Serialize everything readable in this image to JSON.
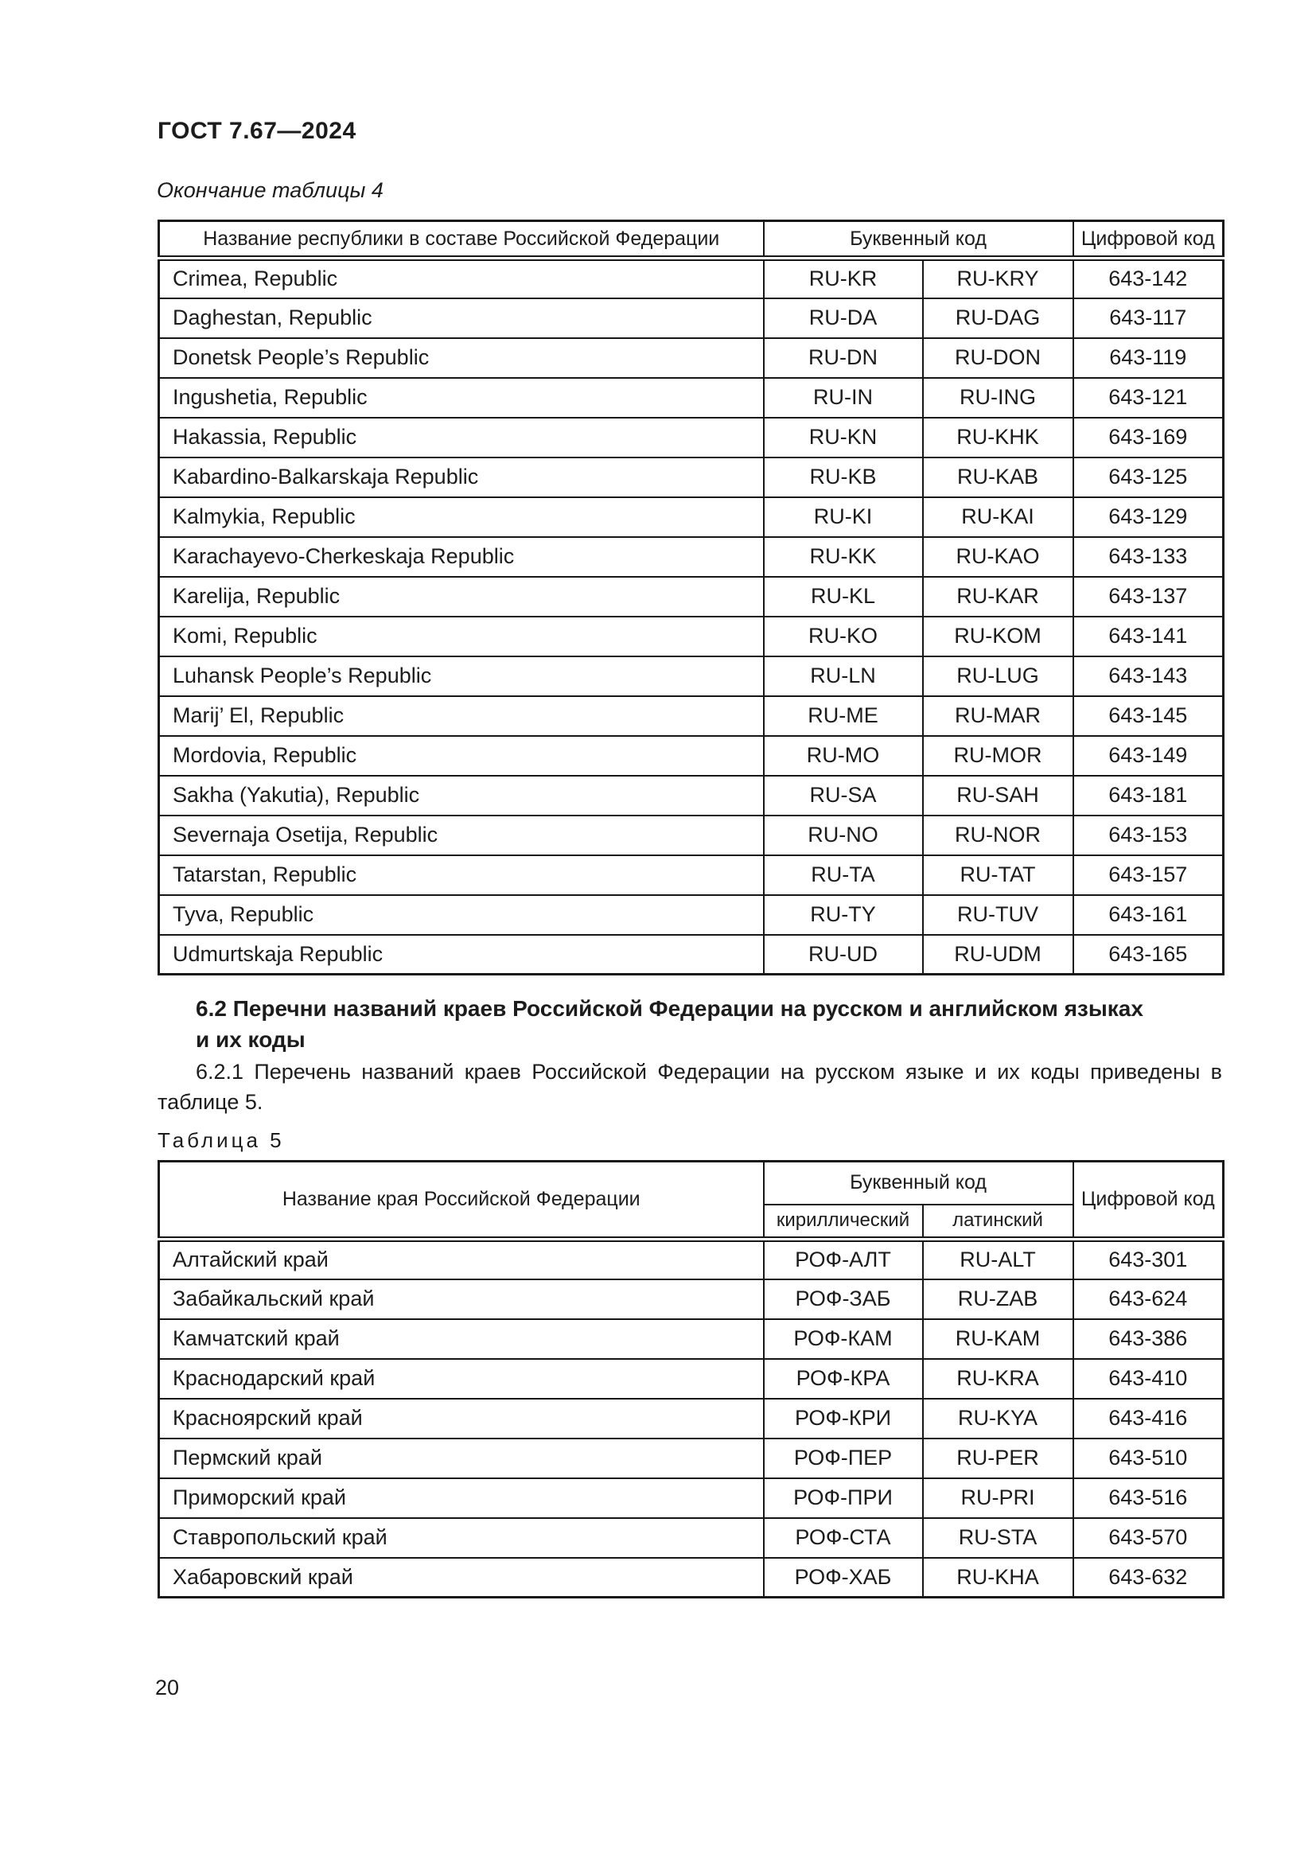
{
  "page": {
    "doc_code": "ГОСТ 7.67—2024",
    "page_number": "20"
  },
  "table4": {
    "caption": "Окончание таблицы 4",
    "headers": {
      "name": "Название республики в составе Российской Федерации",
      "letter_code": "Буквенный код",
      "digital_code": "Цифровой код"
    },
    "rows": [
      {
        "name": "Crimea, Republic",
        "c1": "RU-KR",
        "c2": "RU-KRY",
        "num": "643-142"
      },
      {
        "name": "Daghestan, Republic",
        "c1": "RU-DA",
        "c2": "RU-DAG",
        "num": "643-117"
      },
      {
        "name": "Donetsk People’s Republic",
        "c1": "RU-DN",
        "c2": "RU-DON",
        "num": "643-119"
      },
      {
        "name": "Ingushetia, Republic",
        "c1": "RU-IN",
        "c2": "RU-ING",
        "num": "643-121"
      },
      {
        "name": "Hakassia, Republic",
        "c1": "RU-KN",
        "c2": "RU-KHK",
        "num": "643-169"
      },
      {
        "name": "Kabardino-Balkarskaja Republic",
        "c1": "RU-KB",
        "c2": "RU-KAB",
        "num": "643-125"
      },
      {
        "name": "Kalmykia, Republic",
        "c1": "RU-KI",
        "c2": "RU-KAI",
        "num": "643-129"
      },
      {
        "name": "Karachayevo-Cherkeskaja Republic",
        "c1": "RU-KK",
        "c2": "RU-KAO",
        "num": "643-133"
      },
      {
        "name": "Karelija, Republic",
        "c1": "RU-KL",
        "c2": "RU-KAR",
        "num": "643-137"
      },
      {
        "name": "Komi, Republic",
        "c1": "RU-KO",
        "c2": "RU-KOM",
        "num": "643-141"
      },
      {
        "name": "Luhansk People’s Republic",
        "c1": "RU-LN",
        "c2": "RU-LUG",
        "num": "643-143"
      },
      {
        "name": "Marij’ El, Republic",
        "c1": "RU-ME",
        "c2": "RU-MAR",
        "num": "643-145"
      },
      {
        "name": "Mordovia, Republic",
        "c1": "RU-MO",
        "c2": "RU-MOR",
        "num": "643-149"
      },
      {
        "name": "Sakha (Yakutia), Republic",
        "c1": "RU-SA",
        "c2": "RU-SAH",
        "num": "643-181"
      },
      {
        "name": "Severnaja Osetija, Republic",
        "c1": "RU-NO",
        "c2": "RU-NOR",
        "num": "643-153"
      },
      {
        "name": "Tatarstan, Republic",
        "c1": "RU-TA",
        "c2": "RU-TAT",
        "num": "643-157"
      },
      {
        "name": "Tyva, Republic",
        "c1": "RU-TY",
        "c2": "RU-TUV",
        "num": "643-161"
      },
      {
        "name": "Udmurtskaja Republic",
        "c1": "RU-UD",
        "c2": "RU-UDM",
        "num": "643-165"
      }
    ]
  },
  "section62": {
    "heading_line1": "6.2 Перечни названий краев Российской Федерации на русском и английском языках",
    "heading_line2": "и их коды",
    "para_621": "6.2.1 Перечень названий краев Российской Федерации на русском языке и их коды приведены в таблице 5."
  },
  "table5": {
    "label": "Таблица 5",
    "headers": {
      "name": "Название края Российской Федерации",
      "letter_code": "Буквенный код",
      "cyrillic": "кириллический",
      "latin": "латинский",
      "digital_code": "Цифровой код"
    },
    "rows": [
      {
        "name": "Алтайский край",
        "c1": "РОФ-АЛТ",
        "c2": "RU-ALT",
        "num": "643-301"
      },
      {
        "name": "Забайкальский край",
        "c1": "РОФ-ЗАБ",
        "c2": "RU-ZAB",
        "num": "643-624"
      },
      {
        "name": "Камчатский край",
        "c1": "РОФ-КАМ",
        "c2": "RU-KAM",
        "num": "643-386"
      },
      {
        "name": "Краснодарский край",
        "c1": "РОФ-КРА",
        "c2": "RU-KRA",
        "num": "643-410"
      },
      {
        "name": "Красноярский край",
        "c1": "РОФ-КРИ",
        "c2": "RU-KYA",
        "num": "643-416"
      },
      {
        "name": "Пермский край",
        "c1": "РОФ-ПЕР",
        "c2": "RU-PER",
        "num": "643-510"
      },
      {
        "name": "Приморский край",
        "c1": "РОФ-ПРИ",
        "c2": "RU-PRI",
        "num": "643-516"
      },
      {
        "name": "Ставропольский край",
        "c1": "РОФ-СТА",
        "c2": "RU-STA",
        "num": "643-570"
      },
      {
        "name": "Хабаровский край",
        "c1": "РОФ-ХАБ",
        "c2": "RU-KHA",
        "num": "643-632"
      }
    ]
  }
}
